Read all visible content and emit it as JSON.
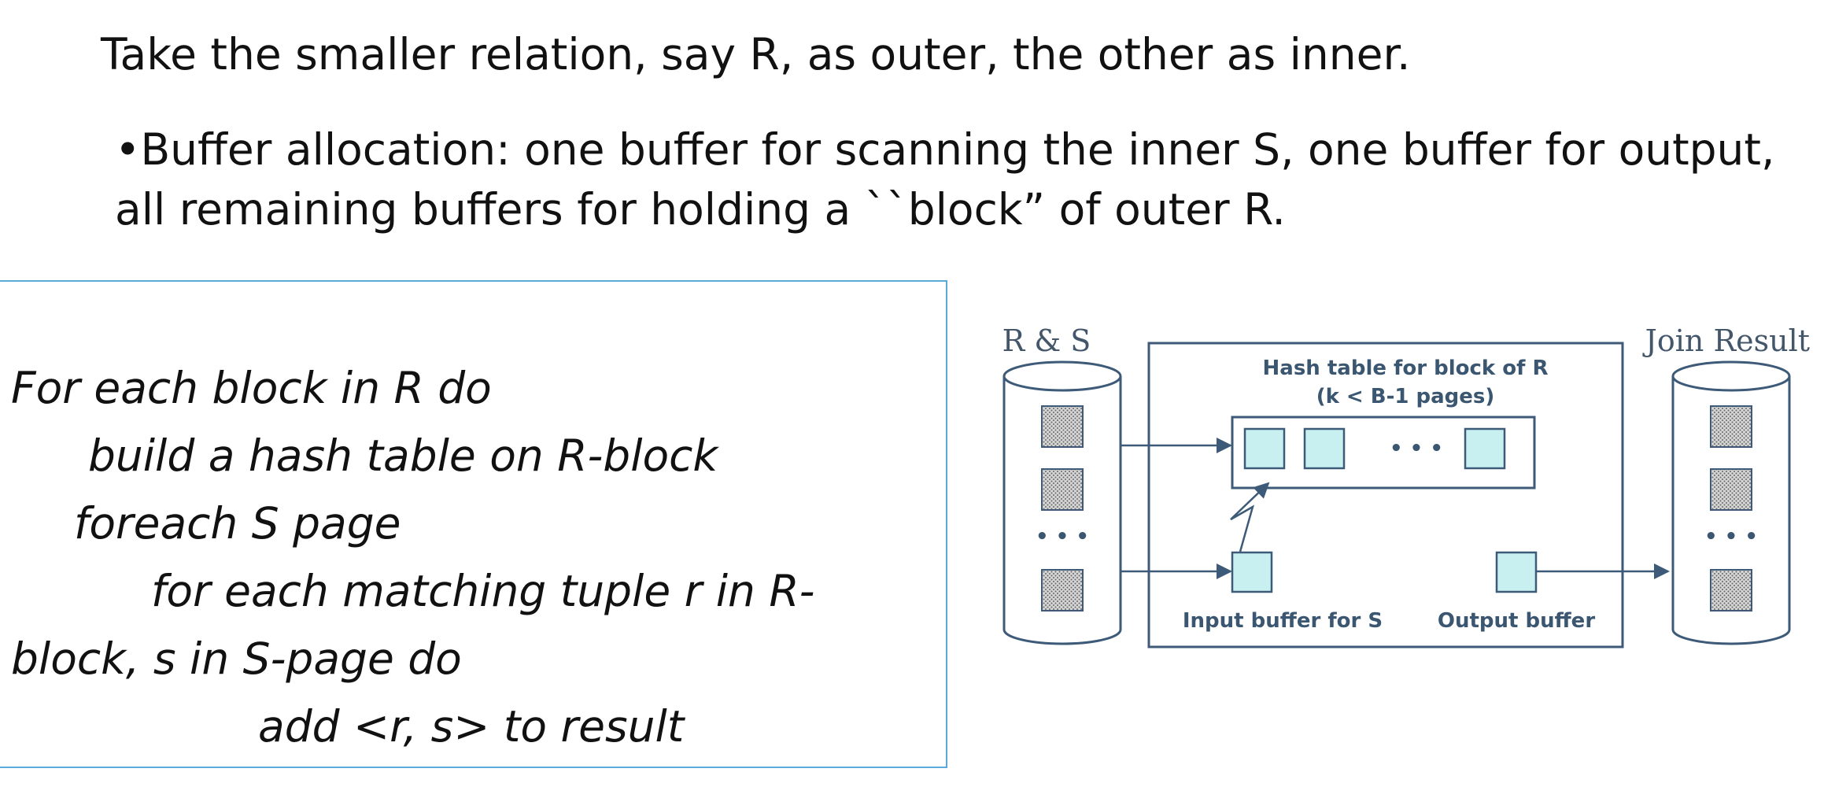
{
  "heading": "Take the smaller relation, say R, as outer, the other as inner.",
  "bullet": {
    "marker": "•",
    "text": "Buffer allocation: one buffer for scanning the inner S, one buffer for output, all remaining buffers for holding a ``block” of outer R."
  },
  "code": {
    "lines": [
      "For each block in R do",
      "build a hash table on R-block",
      "foreach S page",
      "for each matching tuple r in R-",
      "block, s in S-page do",
      "add <r, s> to result"
    ]
  },
  "diagram": {
    "left_label": "R & S",
    "right_label": "Join Result",
    "hash_title": "Hash table for block of R",
    "hash_subtitle": "(k < B-1 pages)",
    "ellipsis": "• • •",
    "input_label": "Input buffer for S",
    "output_label": "Output buffer",
    "colors": {
      "stroke": "#3d5a78",
      "buffer_fill": "#c8f0f0",
      "page_fill": "#c9c9c9"
    }
  }
}
